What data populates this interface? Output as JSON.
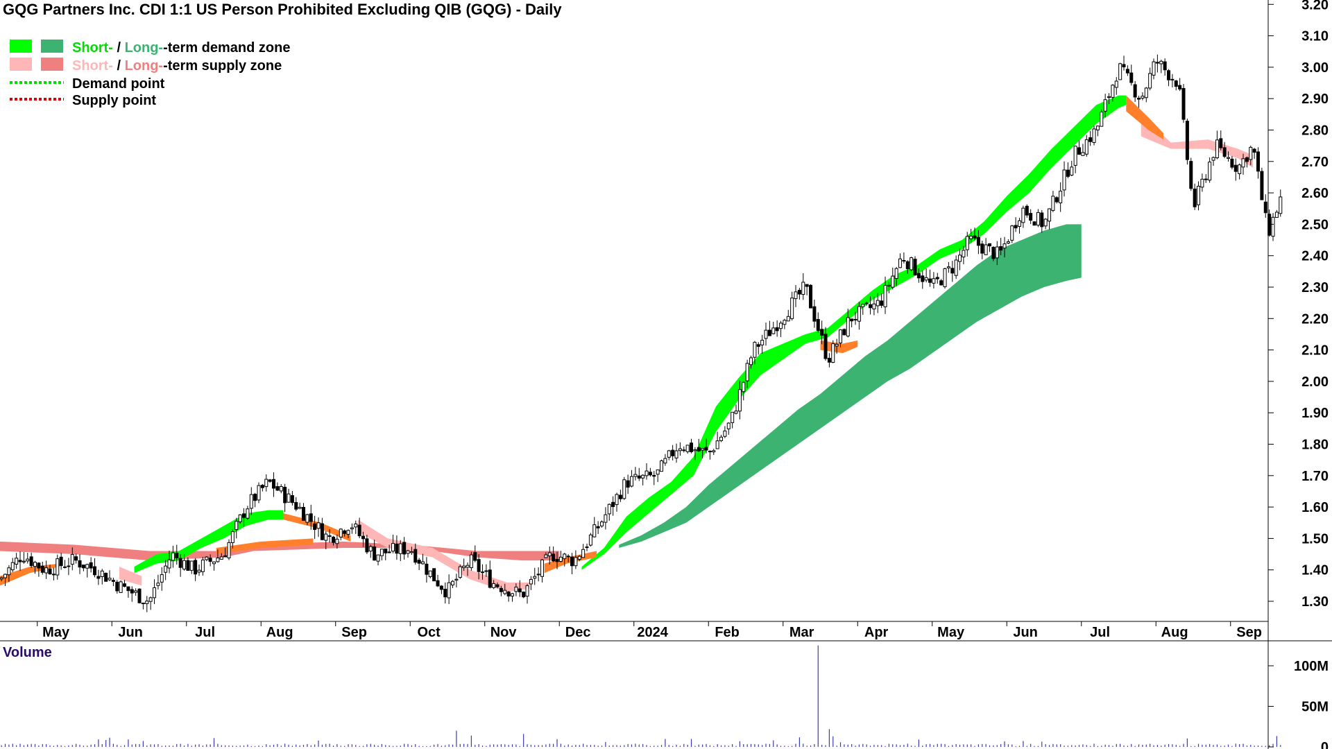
{
  "chart_data": {
    "type": "candlestick",
    "title": "GQG Partners Inc. CDI 1:1 US Person Prohibited Excluding QIB (GQG) - Daily",
    "x_axis": {
      "labels": [
        "May",
        "Jun",
        "Jul",
        "Aug",
        "Sep",
        "Oct",
        "Nov",
        "Dec",
        "2024",
        "Feb",
        "Mar",
        "Apr",
        "May",
        "Jun",
        "Jul",
        "Aug",
        "Sep"
      ],
      "month_index": [
        1,
        2,
        3,
        4,
        5,
        6,
        7,
        8,
        9,
        10,
        11,
        12,
        13,
        14,
        15,
        16,
        17
      ]
    },
    "y_axis": {
      "range": [
        1.25,
        3.22
      ],
      "ticks": [
        "1.30",
        "1.40",
        "1.50",
        "1.60",
        "1.70",
        "1.80",
        "1.90",
        "2.00",
        "2.10",
        "2.20",
        "2.30",
        "2.40",
        "2.50",
        "2.60",
        "2.70",
        "2.80",
        "2.90",
        "3.00",
        "3.10",
        "3.20"
      ],
      "position": "right"
    },
    "legend": {
      "placement": "top-left",
      "zone_short": "Short-",
      "zone_sep": " / ",
      "zone_long": "Long-",
      "demand_zone_suffix": "-term demand zone",
      "supply_zone_suffix": "-term supply zone",
      "demand_point": "Demand point",
      "supply_point": "Supply point"
    },
    "colors": {
      "short_demand": "#00ff00",
      "long_demand": "#3cb371",
      "short_supply": "#ffb6b6",
      "long_supply": "#f08080",
      "transition": "#ff7f2a",
      "demand_point": "#00dd00",
      "supply_point": "#dd0000",
      "candle": "#000000",
      "volume": "#3b3bb3"
    },
    "price_path": [
      [
        0,
        1.37
      ],
      [
        0.3,
        1.45
      ],
      [
        0.6,
        1.4
      ],
      [
        1,
        1.43
      ],
      [
        1.3,
        1.4
      ],
      [
        1.6,
        1.35
      ],
      [
        2,
        1.3
      ],
      [
        2.3,
        1.45
      ],
      [
        2.6,
        1.4
      ],
      [
        3,
        1.45
      ],
      [
        3.3,
        1.6
      ],
      [
        3.6,
        1.68
      ],
      [
        4,
        1.6
      ],
      [
        4.4,
        1.5
      ],
      [
        4.7,
        1.55
      ],
      [
        5,
        1.45
      ],
      [
        5.5,
        1.47
      ],
      [
        5.8,
        1.38
      ],
      [
        6,
        1.33
      ],
      [
        6.3,
        1.43
      ],
      [
        6.6,
        1.36
      ],
      [
        7,
        1.32
      ],
      [
        7.4,
        1.45
      ],
      [
        7.7,
        1.43
      ],
      [
        8,
        1.53
      ],
      [
        8.4,
        1.68
      ],
      [
        8.8,
        1.7
      ],
      [
        9.1,
        1.8
      ],
      [
        9.5,
        1.77
      ],
      [
        9.8,
        1.87
      ],
      [
        10.1,
        2.1
      ],
      [
        10.4,
        2.18
      ],
      [
        10.8,
        2.3
      ],
      [
        11.1,
        2.07
      ],
      [
        11.4,
        2.2
      ],
      [
        11.8,
        2.25
      ],
      [
        12.1,
        2.4
      ],
      [
        12.5,
        2.3
      ],
      [
        12.8,
        2.37
      ],
      [
        13,
        2.45
      ],
      [
        13.4,
        2.4
      ],
      [
        13.7,
        2.55
      ],
      [
        14,
        2.5
      ],
      [
        14.4,
        2.72
      ],
      [
        14.7,
        2.8
      ],
      [
        15,
        3.0
      ],
      [
        15.3,
        2.9
      ],
      [
        15.5,
        3.02
      ],
      [
        15.8,
        2.95
      ],
      [
        16,
        2.55
      ],
      [
        16.3,
        2.75
      ],
      [
        16.6,
        2.68
      ],
      [
        16.8,
        2.75
      ],
      [
        17,
        2.47
      ],
      [
        17.2,
        2.6
      ]
    ],
    "short_demand_zone": [
      [
        1.8,
        1.39,
        1.41
      ],
      [
        2.1,
        1.42,
        1.45
      ],
      [
        2.4,
        1.43,
        1.46
      ],
      [
        2.7,
        1.47,
        1.5
      ],
      [
        3,
        1.5,
        1.54
      ],
      [
        3.3,
        1.54,
        1.58
      ],
      [
        3.6,
        1.56,
        1.59
      ],
      [
        3.8,
        1.56,
        1.59
      ],
      [
        7.8,
        1.4,
        1.41
      ],
      [
        8.1,
        1.45,
        1.47
      ],
      [
        8.4,
        1.52,
        1.57
      ],
      [
        8.7,
        1.58,
        1.63
      ],
      [
        9,
        1.64,
        1.68
      ],
      [
        9.3,
        1.7,
        1.76
      ],
      [
        9.6,
        1.84,
        1.92
      ],
      [
        9.9,
        1.94,
        2.01
      ],
      [
        10.2,
        2.02,
        2.09
      ],
      [
        10.5,
        2.07,
        2.12
      ],
      [
        10.8,
        2.12,
        2.15
      ],
      [
        11.1,
        2.14,
        2.17
      ],
      [
        11.4,
        2.2,
        2.23
      ],
      [
        11.7,
        2.26,
        2.29
      ],
      [
        12,
        2.3,
        2.34
      ],
      [
        12.3,
        2.34,
        2.37
      ],
      [
        12.6,
        2.39,
        2.42
      ],
      [
        12.9,
        2.42,
        2.45
      ],
      [
        13.2,
        2.47,
        2.51
      ],
      [
        13.5,
        2.54,
        2.59
      ],
      [
        13.8,
        2.6,
        2.66
      ],
      [
        14.1,
        2.68,
        2.74
      ],
      [
        14.4,
        2.75,
        2.81
      ],
      [
        14.7,
        2.82,
        2.88
      ],
      [
        15,
        2.87,
        2.91
      ],
      [
        15.1,
        2.88,
        2.91
      ]
    ],
    "long_demand_zone": [
      [
        8.3,
        1.47,
        1.48
      ],
      [
        8.6,
        1.49,
        1.51
      ],
      [
        8.9,
        1.52,
        1.55
      ],
      [
        9.2,
        1.55,
        1.6
      ],
      [
        9.5,
        1.6,
        1.67
      ],
      [
        9.8,
        1.65,
        1.73
      ],
      [
        10.1,
        1.7,
        1.79
      ],
      [
        10.4,
        1.75,
        1.85
      ],
      [
        10.7,
        1.8,
        1.91
      ],
      [
        11,
        1.85,
        1.96
      ],
      [
        11.3,
        1.9,
        2.02
      ],
      [
        11.6,
        1.95,
        2.08
      ],
      [
        11.9,
        2.0,
        2.13
      ],
      [
        12.2,
        2.04,
        2.19
      ],
      [
        12.5,
        2.09,
        2.25
      ],
      [
        12.8,
        2.14,
        2.31
      ],
      [
        13.1,
        2.19,
        2.37
      ],
      [
        13.4,
        2.23,
        2.42
      ],
      [
        13.7,
        2.27,
        2.45
      ],
      [
        14,
        2.3,
        2.48
      ],
      [
        14.3,
        2.32,
        2.5
      ],
      [
        14.5,
        2.33,
        2.5
      ]
    ],
    "long_supply_zone": [
      [
        0,
        1.46,
        1.49
      ],
      [
        1,
        1.45,
        1.48
      ],
      [
        2,
        1.43,
        1.46
      ],
      [
        3,
        1.44,
        1.46
      ],
      [
        3.4,
        1.46,
        1.48
      ],
      [
        4.6,
        1.47,
        1.49
      ],
      [
        5.5,
        1.47,
        1.48
      ],
      [
        6.4,
        1.44,
        1.46
      ],
      [
        7,
        1.43,
        1.46
      ],
      [
        7.5,
        1.43,
        1.46
      ]
    ],
    "short_supply_zone": [
      [
        1.6,
        1.37,
        1.41
      ],
      [
        1.9,
        1.35,
        1.38
      ],
      [
        4.8,
        1.52,
        1.56
      ],
      [
        5.2,
        1.47,
        1.5
      ],
      [
        5.8,
        1.44,
        1.47
      ],
      [
        6.3,
        1.37,
        1.4
      ],
      [
        6.8,
        1.33,
        1.36
      ],
      [
        7.1,
        1.34,
        1.36
      ],
      [
        15.3,
        2.78,
        2.85
      ],
      [
        15.7,
        2.74,
        2.76
      ],
      [
        16.2,
        2.74,
        2.77
      ],
      [
        16.6,
        2.71,
        2.74
      ],
      [
        16.8,
        2.68,
        2.72
      ]
    ],
    "volume": {
      "title": "Volume",
      "range": [
        0,
        125
      ],
      "unit": "M",
      "ticks": [
        "0",
        "50M",
        "100M"
      ],
      "spike_month": 10.95,
      "spike_value": 125
    }
  }
}
